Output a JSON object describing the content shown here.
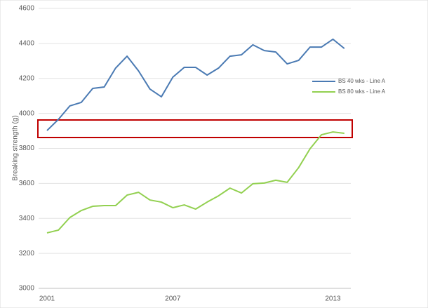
{
  "chart_data": {
    "type": "line",
    "y_label": "Breaking strength (g)",
    "categories": [
      "2001",
      null,
      null,
      null,
      null,
      null,
      null,
      null,
      null,
      null,
      null,
      "2007",
      null,
      null,
      null,
      null,
      null,
      null,
      null,
      null,
      null,
      null,
      null,
      null,
      null,
      "2013",
      null
    ],
    "series": [
      {
        "name": "BS 40 wks - Line A",
        "color": "#4a7ab3",
        "values": [
          3902,
          3966,
          4043,
          4063,
          4143,
          4151,
          4259,
          4327,
          4243,
          4139,
          4095,
          4207,
          4263,
          4263,
          4219,
          4259,
          4327,
          4335,
          4392,
          4359,
          4351,
          4283,
          4303,
          4379,
          4379,
          4424,
          4371
        ]
      },
      {
        "name": "BS 80 wks - Line A",
        "color": "#92d050",
        "values": [
          3317,
          3333,
          3405,
          3445,
          3469,
          3473,
          3473,
          3533,
          3549,
          3505,
          3493,
          3461,
          3477,
          3453,
          3493,
          3529,
          3573,
          3545,
          3598,
          3602,
          3618,
          3606,
          3690,
          3798,
          3878,
          3894,
          3886
        ]
      }
    ],
    "ylim": [
      3000,
      4600
    ],
    "yticks": [
      3000,
      3200,
      3400,
      3600,
      3800,
      4000,
      4200,
      4400,
      4600
    ],
    "grid": true
  }
}
